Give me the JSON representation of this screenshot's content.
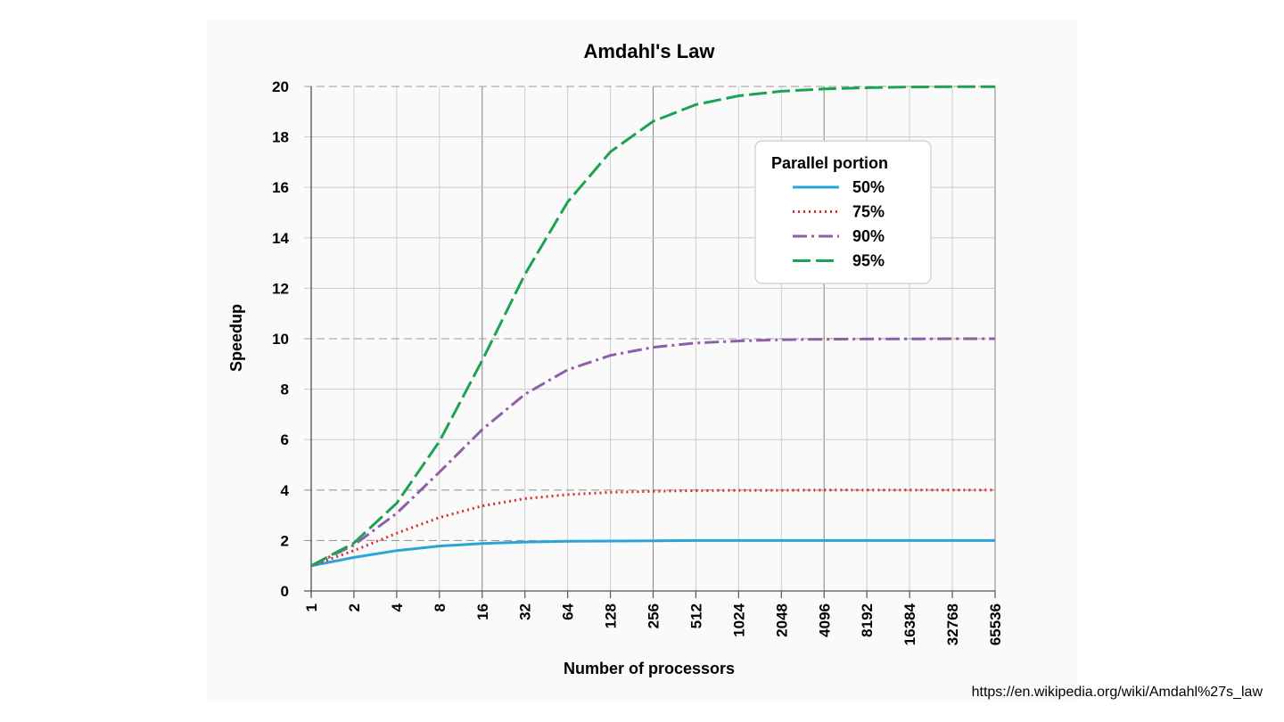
{
  "source_url": "https://en.wikipedia.org/wiki/Amdahl%27s_law",
  "chart_data": {
    "type": "line",
    "title": "Amdahl's Law",
    "xlabel": "Number of processors",
    "ylabel": "Speedup",
    "x_scale": "log2",
    "x": [
      1,
      2,
      4,
      8,
      16,
      32,
      64,
      128,
      256,
      512,
      1024,
      2048,
      4096,
      8192,
      16384,
      32768,
      65536
    ],
    "x_tick_labels": [
      "1",
      "2",
      "4",
      "8",
      "16",
      "32",
      "64",
      "128",
      "256",
      "512",
      "1024",
      "2048",
      "4096",
      "8192",
      "16384",
      "32768",
      "65536"
    ],
    "y_ticks": [
      0,
      2,
      4,
      6,
      8,
      10,
      12,
      14,
      16,
      18,
      20
    ],
    "ylim": [
      0,
      20
    ],
    "grid": true,
    "legend": {
      "title": "Parallel portion",
      "placement": "top-right"
    },
    "series": [
      {
        "name": "50%",
        "color": "#2aa4d8",
        "style": "solid",
        "values": [
          1.0,
          1.33,
          1.6,
          1.78,
          1.88,
          1.94,
          1.97,
          1.98,
          1.99,
          2.0,
          2.0,
          2.0,
          2.0,
          2.0,
          2.0,
          2.0,
          2.0
        ]
      },
      {
        "name": "75%",
        "color": "#e0292a",
        "style": "dotted",
        "values": [
          1.0,
          1.6,
          2.29,
          2.91,
          3.37,
          3.66,
          3.82,
          3.91,
          3.95,
          3.98,
          3.99,
          3.99,
          4.0,
          4.0,
          4.0,
          4.0,
          4.0
        ]
      },
      {
        "name": "90%",
        "color": "#8e5fa8",
        "style": "dashdot",
        "values": [
          1.0,
          1.82,
          3.08,
          4.71,
          6.4,
          7.8,
          8.77,
          9.34,
          9.66,
          9.83,
          9.91,
          9.96,
          9.98,
          9.99,
          9.99,
          10.0,
          10.0
        ]
      },
      {
        "name": "95%",
        "color": "#1ca352",
        "style": "dashed",
        "values": [
          1.0,
          1.9,
          3.48,
          5.93,
          9.14,
          12.55,
          15.42,
          17.41,
          18.62,
          19.28,
          19.63,
          19.81,
          19.9,
          19.95,
          19.98,
          19.99,
          19.99
        ]
      }
    ]
  }
}
